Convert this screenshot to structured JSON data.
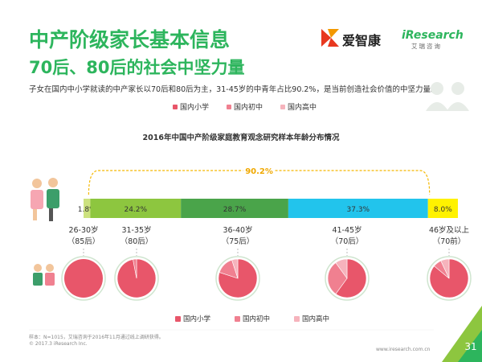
{
  "header": {
    "title_line1": "中产阶级家长基本信息",
    "title_line2": "70后、80后的社会中坚力量",
    "subtitle": "子女在国内中小学就读的中产家长以70后和80后为主，31-45岁的中青年占比90.2%，是当前创造社会价值的中坚力量。"
  },
  "logos": {
    "brand1": "爱智康",
    "brand2": "iResearch",
    "brand2_sub": "艾瑞咨询"
  },
  "legend_top": [
    {
      "label": "国内小学",
      "color": "#e8566a"
    },
    {
      "label": "国内初中",
      "color": "#f08090"
    },
    {
      "label": "国内高中",
      "color": "#f6b3bc"
    }
  ],
  "chart_data": [
    {
      "type": "bar",
      "title": "2016年中国中产阶级家庭教育观念研究样本年龄分布情况",
      "stacked": true,
      "orientation": "horizontal",
      "segments": [
        {
          "label": "1.8%",
          "value": 1.8,
          "color": "#cde27f"
        },
        {
          "label": "24.2%",
          "value": 24.2,
          "color": "#8dc63f"
        },
        {
          "label": "28.7%",
          "value": 28.7,
          "color": "#4aa44a"
        },
        {
          "label": "37.3%",
          "value": 37.3,
          "color": "#22c4ec"
        },
        {
          "label": "8.0%",
          "value": 8.0,
          "color": "#fff200"
        }
      ],
      "bracket_label": "90.2%",
      "categories": [
        {
          "age": "26-30岁",
          "gen": "（85后）"
        },
        {
          "age": "31-35岁",
          "gen": "（80后）"
        },
        {
          "age": "36-40岁",
          "gen": "（75后）"
        },
        {
          "age": "41-45岁",
          "gen": "（70后）"
        },
        {
          "age": "46岁及以上",
          "gen": "（70前）"
        }
      ]
    },
    {
      "type": "pie",
      "series_labels": [
        "国内小学",
        "国内初中",
        "国内高中"
      ],
      "colors": [
        "#e8566a",
        "#f08090",
        "#f6b3bc"
      ],
      "pies": [
        {
          "values": [
            100,
            0,
            0
          ]
        },
        {
          "values": [
            97,
            3,
            0
          ]
        },
        {
          "values": [
            80,
            15,
            5
          ]
        },
        {
          "values": [
            60,
            30,
            10
          ]
        },
        {
          "values": [
            86,
            7,
            7
          ]
        }
      ]
    }
  ],
  "legend_bottom": [
    {
      "label": "国内小学",
      "color": "#e8566a"
    },
    {
      "label": "国内初中",
      "color": "#f08090"
    },
    {
      "label": "国内高中",
      "color": "#f6b3bc"
    }
  ],
  "footer": {
    "note": "样本：N=1015，艾瑞咨询于2016年11月通过线上调研获得。",
    "copyright": "© 2017.3 iResearch Inc.",
    "website": "www.iresearch.com.cn",
    "page": "31"
  }
}
